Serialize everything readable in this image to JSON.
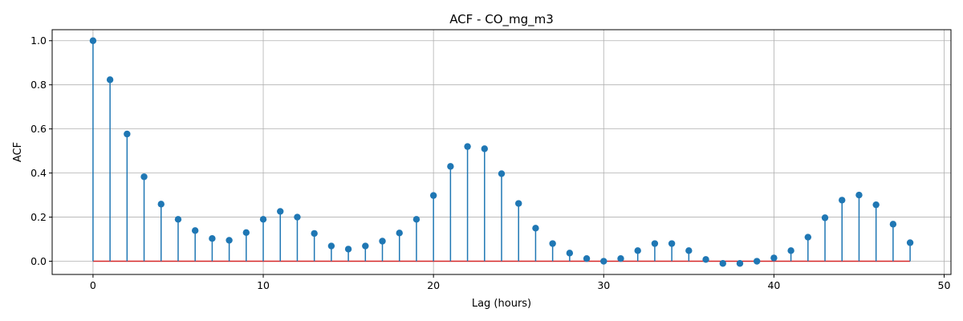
{
  "chart_data": {
    "type": "stem",
    "title": "ACF - CO_mg_m3",
    "xlabel": "Lag (hours)",
    "ylabel": "ACF",
    "xlim": [
      -2.4,
      50.4
    ],
    "ylim": [
      -0.06,
      1.05
    ],
    "xticks": [
      0,
      10,
      20,
      30,
      40,
      50
    ],
    "yticks": [
      0.0,
      0.2,
      0.4,
      0.6,
      0.8,
      1.0
    ],
    "xtick_labels": [
      "0",
      "10",
      "20",
      "30",
      "40",
      "50"
    ],
    "ytick_labels": [
      "0.0",
      "0.2",
      "0.4",
      "0.6",
      "0.8",
      "1.0"
    ],
    "grid": true,
    "colors": {
      "stem": "#1f77b4",
      "baseline": "#d62728",
      "grid": "#b0b0b0"
    },
    "x": [
      0,
      1,
      2,
      3,
      4,
      5,
      6,
      7,
      8,
      9,
      10,
      11,
      12,
      13,
      14,
      15,
      16,
      17,
      18,
      19,
      20,
      21,
      22,
      23,
      24,
      25,
      26,
      27,
      28,
      29,
      30,
      31,
      32,
      33,
      34,
      35,
      36,
      37,
      38,
      39,
      40,
      41,
      42,
      43,
      44,
      45,
      46,
      47,
      48
    ],
    "values": [
      1.0,
      0.823,
      0.577,
      0.383,
      0.259,
      0.19,
      0.139,
      0.103,
      0.095,
      0.13,
      0.19,
      0.226,
      0.2,
      0.126,
      0.069,
      0.055,
      0.069,
      0.091,
      0.128,
      0.19,
      0.298,
      0.43,
      0.52,
      0.51,
      0.397,
      0.262,
      0.15,
      0.08,
      0.037,
      0.012,
      0.0,
      0.012,
      0.048,
      0.08,
      0.08,
      0.048,
      0.008,
      -0.01,
      -0.01,
      0.0,
      0.015,
      0.048,
      0.109,
      0.197,
      0.277,
      0.3,
      0.256,
      0.168,
      0.084
    ]
  }
}
